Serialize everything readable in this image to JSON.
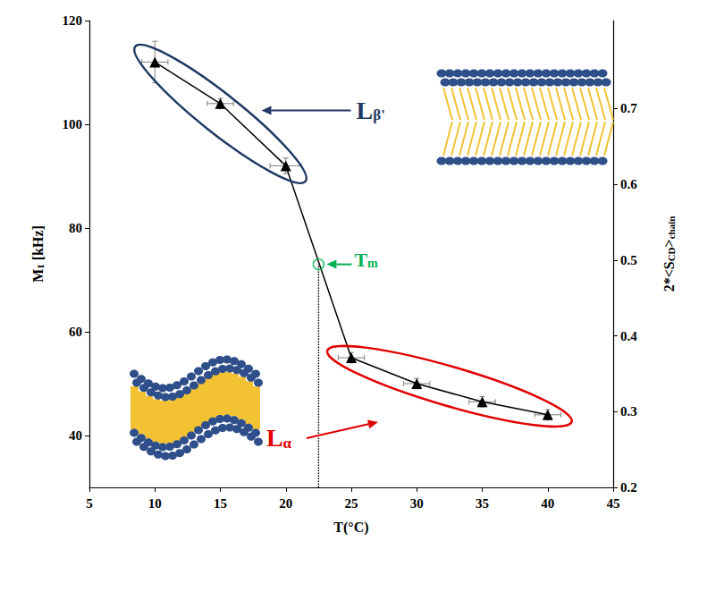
{
  "chart_data": {
    "type": "line",
    "xlabel": "T(°C)",
    "ylabel": [
      {
        "text": "M"
      },
      {
        "text": "1",
        "sub": true
      },
      {
        "text": " [kHz]"
      }
    ],
    "y2label": [
      {
        "text": "2*<S"
      },
      {
        "text": "CD",
        "sub": true
      },
      {
        "text": ">"
      },
      {
        "text": "chain",
        "sub": true
      }
    ],
    "x": [
      10,
      15,
      20,
      25,
      30,
      35,
      40
    ],
    "values": [
      112,
      104,
      92,
      55,
      50,
      46.5,
      44
    ],
    "x_errors": [
      1,
      1,
      1.2,
      1,
      1,
      1,
      1
    ],
    "y_errors": [
      4,
      1,
      1.5,
      1,
      1,
      1,
      1
    ],
    "color": "#000000",
    "marker": "triangle",
    "line_style": "solid",
    "xlim": [
      5,
      45
    ],
    "xticks": [
      5,
      10,
      15,
      20,
      25,
      30,
      35,
      40,
      45
    ],
    "ylim": [
      30,
      120
    ],
    "yticks": [
      40,
      60,
      80,
      100,
      120
    ],
    "y2lim": [
      0.2,
      0.816
    ],
    "y2ticks": [
      0.2,
      0.3,
      0.4,
      0.5,
      0.6,
      0.7
    ],
    "grid": false,
    "phases": [
      {
        "label": [
          {
            "text": "L"
          },
          {
            "text": "β'",
            "sub": true
          }
        ],
        "color": "#1f3864",
        "points": [
          0,
          1,
          2
        ]
      },
      {
        "label": [
          {
            "text": "L"
          },
          {
            "text": "α",
            "sub": true
          }
        ],
        "color": "#e00000",
        "points": [
          3,
          4,
          5,
          6
        ]
      }
    ],
    "tm": {
      "label": [
        {
          "text": "T"
        },
        {
          "text": "m",
          "sub": true
        }
      ],
      "x": 22.5,
      "y": 73,
      "color": "#00b050"
    }
  }
}
